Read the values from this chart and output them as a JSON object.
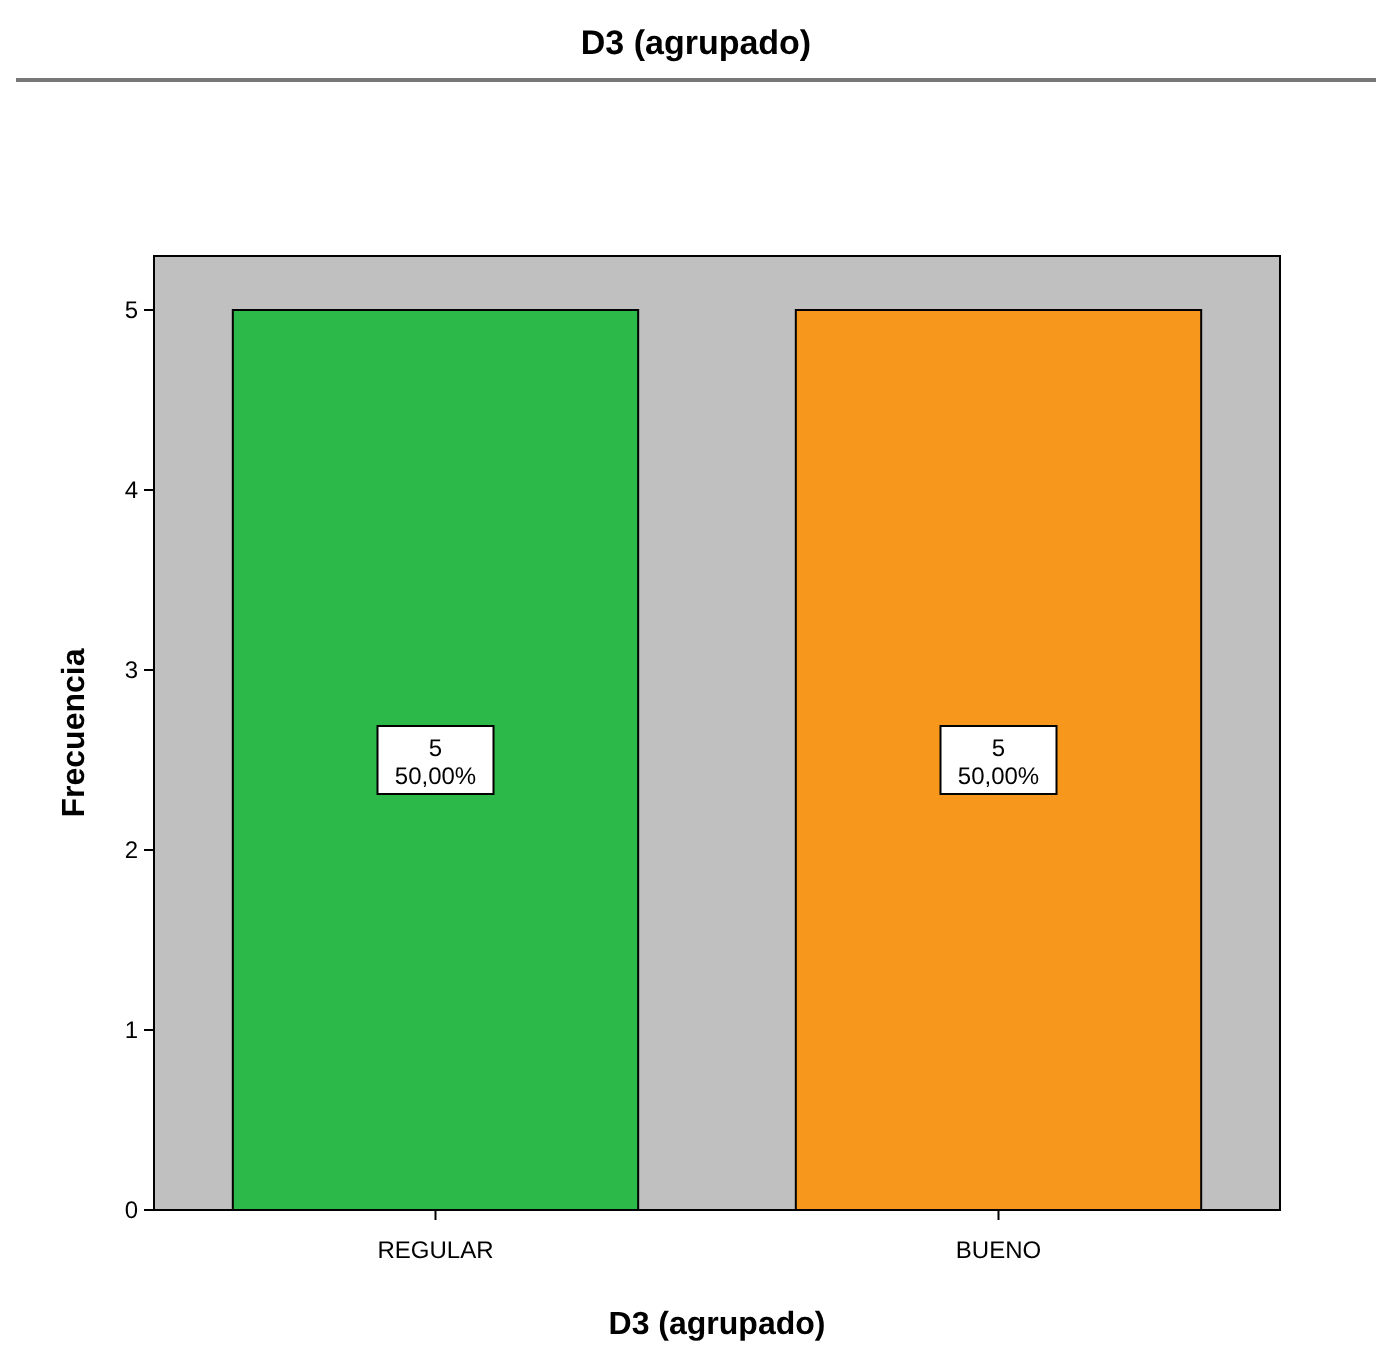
{
  "chart_data": {
    "type": "bar",
    "title": "D3 (agrupado)",
    "xlabel": "D3 (agrupado)",
    "ylabel": "Frecuencia",
    "categories": [
      "REGULAR",
      "BUENO"
    ],
    "values": [
      5,
      5
    ],
    "colors": [
      "#2db84a",
      "#f7981d"
    ],
    "value_labels": [
      "5\n50,00%",
      "5\n50,00%"
    ],
    "ylim": [
      0,
      5.3
    ],
    "yticks": [
      0,
      1,
      2,
      3,
      4,
      5
    ],
    "grid": false
  }
}
